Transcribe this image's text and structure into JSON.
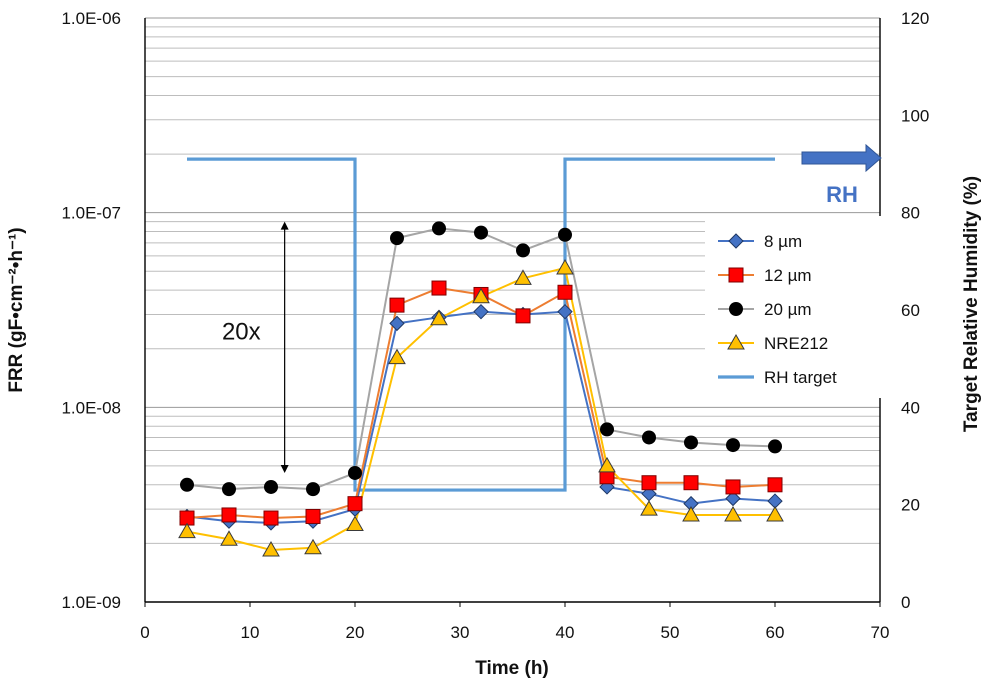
{
  "chart_data": {
    "type": "line",
    "xlabel": "Time (h)",
    "ylabel": "FRR (gF•cm⁻²•h⁻¹)",
    "y2label": "Target Relative Humidity (%)",
    "xlim": [
      0,
      70
    ],
    "ylim": [
      1e-09,
      1e-06
    ],
    "y2lim": [
      0,
      120
    ],
    "yscale": "log",
    "x_ticks": [
      0,
      10,
      20,
      30,
      40,
      50,
      60,
      70
    ],
    "y_ticks": [
      {
        "value": 1e-09,
        "label": "1.0E-09"
      },
      {
        "value": 1e-08,
        "label": "1.0E-08"
      },
      {
        "value": 1e-07,
        "label": "1.0E-07"
      },
      {
        "value": 1e-06,
        "label": "1.0E-06"
      }
    ],
    "y2_ticks": [
      0,
      20,
      40,
      60,
      80,
      100,
      120
    ],
    "grid": "log-minor-horizontal",
    "legend_position": "right",
    "series": [
      {
        "name": "8  µm",
        "color": "#4472C4",
        "marker": "diamond",
        "marker_fill": "#4472C4",
        "x": [
          4,
          8,
          12,
          16,
          20,
          24,
          28,
          32,
          36,
          40,
          44,
          48,
          52,
          56,
          60
        ],
        "values": [
          2.75e-09,
          2.6e-09,
          2.55e-09,
          2.6e-09,
          3e-09,
          2.7e-08,
          2.9e-08,
          3.1e-08,
          3e-08,
          3.1e-08,
          3.9e-09,
          3.6e-09,
          3.2e-09,
          3.4e-09,
          3.3e-09
        ]
      },
      {
        "name": "12 µm",
        "color": "#ED7D31",
        "marker": "square",
        "marker_fill": "#FF0000",
        "x": [
          4,
          8,
          12,
          16,
          20,
          24,
          28,
          32,
          36,
          40,
          44,
          48,
          52,
          56,
          60
        ],
        "values": [
          2.7e-09,
          2.8e-09,
          2.7e-09,
          2.75e-09,
          3.2e-09,
          3.35e-08,
          4.1e-08,
          3.8e-08,
          2.95e-08,
          3.9e-08,
          4.4e-09,
          4.1e-09,
          4.1e-09,
          3.9e-09,
          4e-09
        ]
      },
      {
        "name": "20 µm",
        "color": "#A5A5A5",
        "marker": "circle",
        "marker_fill": "#000000",
        "x": [
          4,
          8,
          12,
          16,
          20,
          24,
          28,
          32,
          36,
          40,
          44,
          48,
          52,
          56,
          60
        ],
        "values": [
          4e-09,
          3.8e-09,
          3.9e-09,
          3.8e-09,
          4.6e-09,
          7.4e-08,
          8.3e-08,
          7.9e-08,
          6.4e-08,
          7.7e-08,
          7.7e-09,
          7e-09,
          6.6e-09,
          6.4e-09,
          6.3e-09
        ]
      },
      {
        "name": "NRE212",
        "color": "#FFC000",
        "marker": "triangle",
        "marker_fill": "#FFC000",
        "x": [
          4,
          8,
          12,
          16,
          20,
          24,
          28,
          32,
          36,
          40,
          44,
          48,
          52,
          56,
          60
        ],
        "values": [
          2.3e-09,
          2.1e-09,
          1.85e-09,
          1.9e-09,
          2.5e-09,
          1.8e-08,
          2.85e-08,
          3.7e-08,
          4.6e-08,
          5.2e-08,
          5e-09,
          3e-09,
          2.8e-09,
          2.8e-09,
          2.8e-09
        ]
      },
      {
        "name": "RH target",
        "color": "#5B9BD5",
        "axis": "secondary",
        "marker": "none",
        "x": [
          4,
          20,
          20,
          40,
          40,
          60
        ],
        "values": [
          91,
          91,
          23,
          23,
          91,
          91
        ]
      }
    ],
    "annotations": [
      {
        "text": "20x",
        "type": "double-arrow",
        "x": 13.3,
        "y_from": 4.6e-09,
        "y_to": 9e-08
      },
      {
        "text": "RH",
        "type": "right-arrow",
        "color": "#4472C4"
      }
    ]
  }
}
